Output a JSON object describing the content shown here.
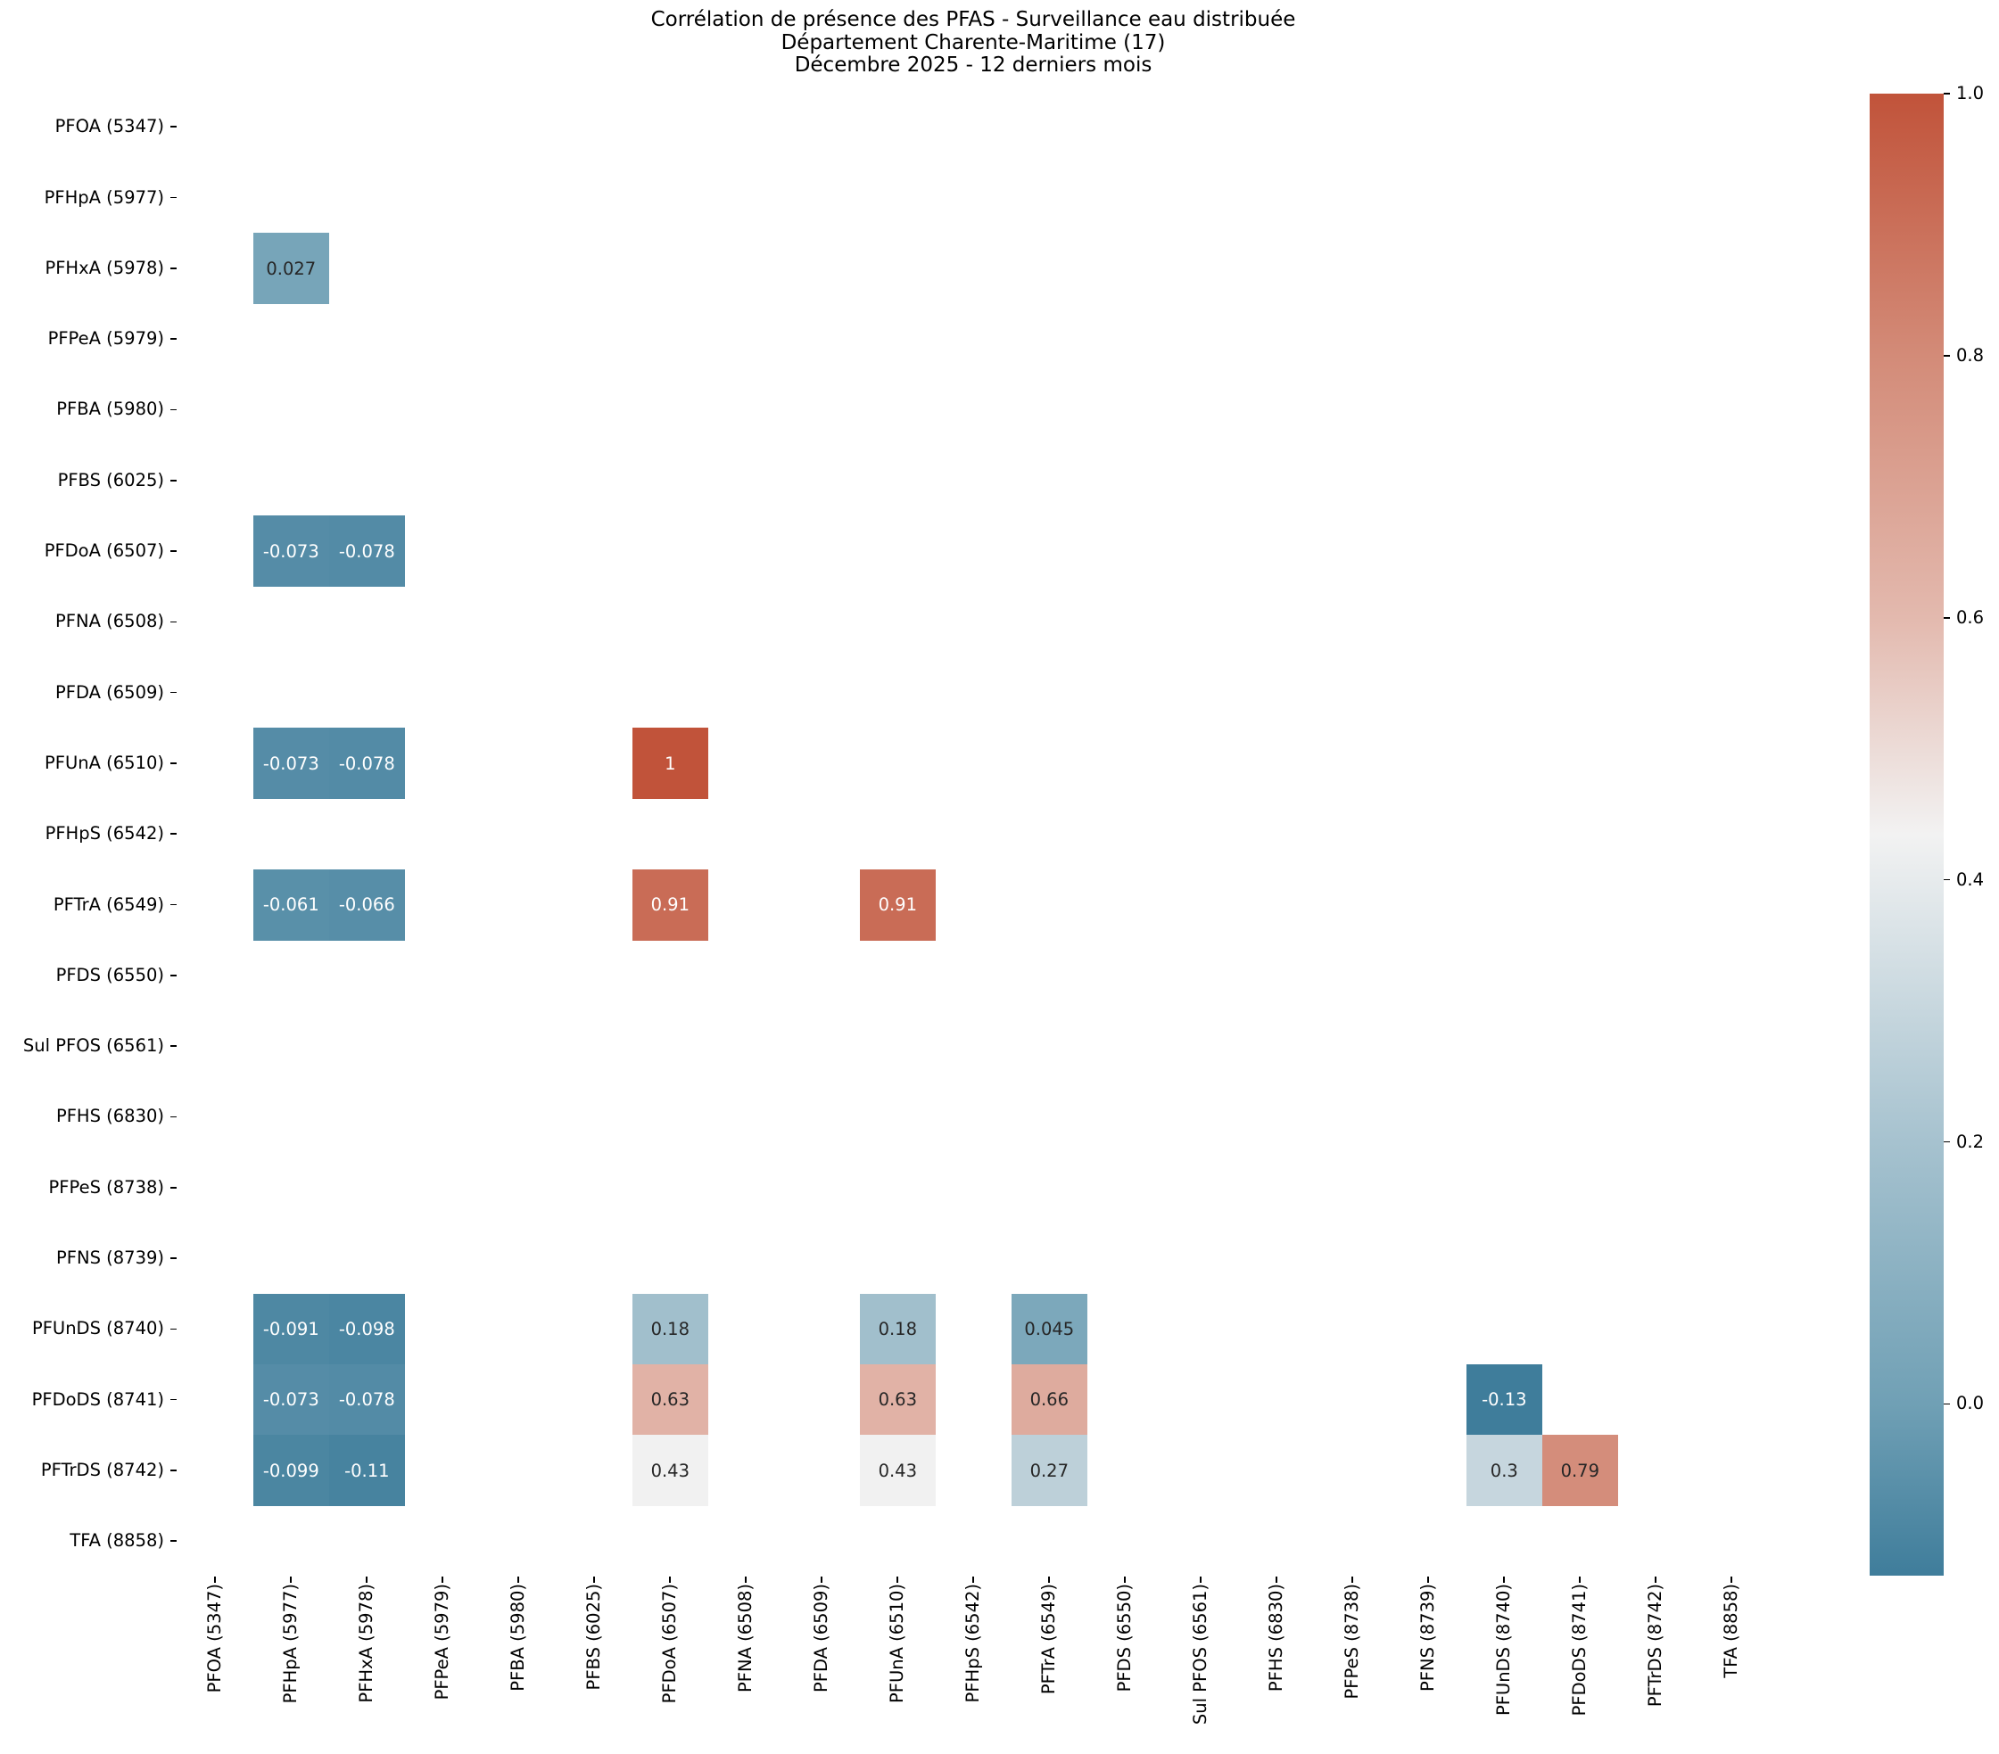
{
  "chart_data": {
    "type": "heatmap",
    "title": "Corrélation de présence des PFAS - Surveillance eau distribuée\nDépartement Charente-Maritime (17)\nDécembre 2025 - 12 derniers mois",
    "title_lines": [
      "Corrélation de présence des PFAS - Surveillance eau distribuée",
      "Département Charente-Maritime (17)",
      "Décembre 2025 - 12 derniers mois"
    ],
    "xlabel": "",
    "ylabel": "",
    "labels": [
      "PFOA (5347)",
      "PFHpA (5977)",
      "PFHxA (5978)",
      "PFPeA (5979)",
      "PFBA (5980)",
      "PFBS (6025)",
      "PFDoA (6507)",
      "PFNA (6508)",
      "PFDA (6509)",
      "PFUnA (6510)",
      "PFHpS (6542)",
      "PFTrA (6549)",
      "PFDS (6550)",
      "Sul PFOS (6561)",
      "PFHS (6830)",
      "PFPeS (8738)",
      "PFNS (8739)",
      "PFUnDS (8740)",
      "PFDoDS (8741)",
      "PFTrDS (8742)",
      "TFA (8858)"
    ],
    "masked": "upper triangle and NaN cells are blank",
    "cells": [
      {
        "row": 2,
        "col": 1,
        "value": "0.027"
      },
      {
        "row": 6,
        "col": 1,
        "value": "-0.073"
      },
      {
        "row": 6,
        "col": 2,
        "value": "-0.078"
      },
      {
        "row": 9,
        "col": 1,
        "value": "-0.073"
      },
      {
        "row": 9,
        "col": 2,
        "value": "-0.078"
      },
      {
        "row": 9,
        "col": 6,
        "value": "1"
      },
      {
        "row": 11,
        "col": 1,
        "value": "-0.061"
      },
      {
        "row": 11,
        "col": 2,
        "value": "-0.066"
      },
      {
        "row": 11,
        "col": 6,
        "value": "0.91"
      },
      {
        "row": 11,
        "col": 9,
        "value": "0.91"
      },
      {
        "row": 17,
        "col": 1,
        "value": "-0.091"
      },
      {
        "row": 17,
        "col": 2,
        "value": "-0.098"
      },
      {
        "row": 17,
        "col": 6,
        "value": "0.18"
      },
      {
        "row": 17,
        "col": 9,
        "value": "0.18"
      },
      {
        "row": 17,
        "col": 11,
        "value": "0.045"
      },
      {
        "row": 18,
        "col": 1,
        "value": "-0.073"
      },
      {
        "row": 18,
        "col": 2,
        "value": "-0.078"
      },
      {
        "row": 18,
        "col": 6,
        "value": "0.63"
      },
      {
        "row": 18,
        "col": 9,
        "value": "0.63"
      },
      {
        "row": 18,
        "col": 11,
        "value": "0.66"
      },
      {
        "row": 18,
        "col": 17,
        "value": "-0.13"
      },
      {
        "row": 19,
        "col": 1,
        "value": "-0.099"
      },
      {
        "row": 19,
        "col": 2,
        "value": "-0.11"
      },
      {
        "row": 19,
        "col": 6,
        "value": "0.43"
      },
      {
        "row": 19,
        "col": 9,
        "value": "0.43"
      },
      {
        "row": 19,
        "col": 11,
        "value": "0.27"
      },
      {
        "row": 19,
        "col": 17,
        "value": "0.3"
      },
      {
        "row": 19,
        "col": 18,
        "value": "0.79"
      }
    ],
    "colorbar": {
      "vmin": -0.131,
      "vmax": 1.0,
      "ticks": [
        "1.0",
        "0.8",
        "0.6",
        "0.4",
        "0.2",
        "0.0"
      ],
      "tick_values": [
        1.0,
        0.8,
        0.6,
        0.4,
        0.2,
        0.0
      ]
    },
    "colormap_stops": [
      {
        "v": -0.131,
        "color": "#3f7d9b"
      },
      {
        "v": 0.0,
        "color": "#70a0b5"
      },
      {
        "v": 0.2,
        "color": "#a6c2cf"
      },
      {
        "v": 0.4345,
        "color": "#f2f2f2"
      },
      {
        "v": 0.6,
        "color": "#e3b9ae"
      },
      {
        "v": 0.8,
        "color": "#d38b78"
      },
      {
        "v": 1.0,
        "color": "#c1533a"
      }
    ],
    "annotation_colors": {
      "light_text": "#ffffff",
      "dark_text": "#262626"
    }
  }
}
